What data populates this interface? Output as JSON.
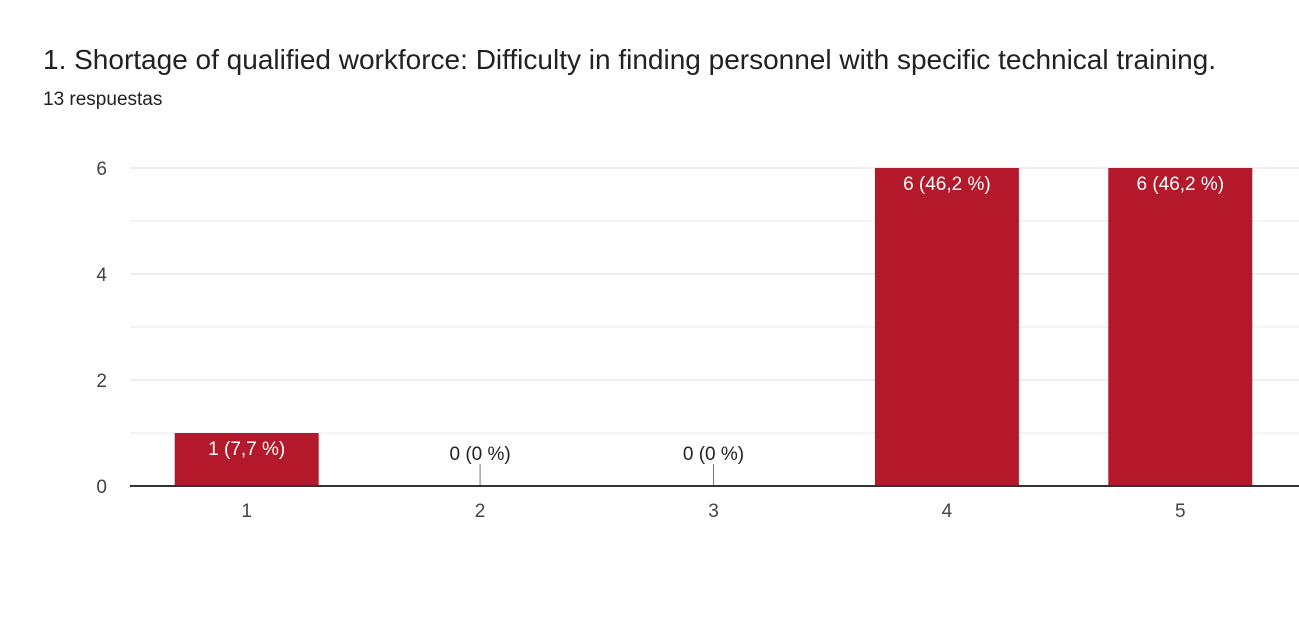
{
  "question": {
    "title": "1. Shortage of qualified workforce: Difficulty in finding personnel with specific technical training.",
    "response_count": "13 respuestas"
  },
  "colors": {
    "bar": "#b3192b",
    "bar_label_inside": "#ffffff",
    "bar_label_outside": "#222222",
    "grid": "#e8e8e8",
    "axis": "#333333"
  },
  "chart_data": {
    "type": "bar",
    "categories": [
      "1",
      "2",
      "3",
      "4",
      "5"
    ],
    "values": [
      1,
      0,
      0,
      6,
      6
    ],
    "data_labels": [
      "1 (7,7 %)",
      "0 (0 %)",
      "0 (0 %)",
      "6 (46,2 %)",
      "6 (46,2 %)"
    ],
    "y_ticks": [
      "0",
      "2",
      "4",
      "6"
    ],
    "ylim": [
      0,
      6
    ],
    "grid": true,
    "legend": false
  }
}
